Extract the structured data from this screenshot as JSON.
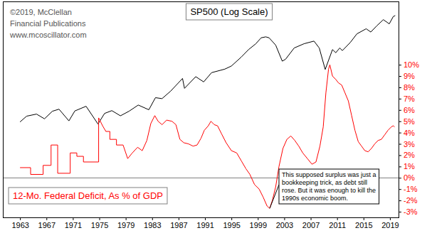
{
  "chart_data": {
    "type": "line",
    "log": "y",
    "grid": false,
    "xlim": [
      1960.4,
      2020.3
    ],
    "xticks": [
      1963,
      1967,
      1971,
      1975,
      1979,
      1983,
      1987,
      1991,
      1995,
      1999,
      2003,
      2007,
      2011,
      2015,
      2019
    ],
    "ylim": [
      2,
      4830
    ],
    "yticks": [],
    "y2lim": [
      -3.5,
      15.6
    ],
    "y2ticks": [
      {
        "value": -3,
        "label": "-3%"
      },
      {
        "value": -2,
        "label": "-2%"
      },
      {
        "value": -1,
        "label": "-1%"
      },
      {
        "value": 0,
        "label": "0%"
      },
      {
        "value": 1,
        "label": "1%"
      },
      {
        "value": 2,
        "label": "2%"
      },
      {
        "value": 3,
        "label": "3%"
      },
      {
        "value": 4,
        "label": "4%"
      },
      {
        "value": 5,
        "label": "5%"
      },
      {
        "value": 6,
        "label": "6%"
      },
      {
        "value": 7,
        "label": "7%"
      },
      {
        "value": 8,
        "label": "8%"
      },
      {
        "value": 9,
        "label": "9%"
      },
      {
        "value": 10,
        "label": "10%"
      }
    ],
    "series": [
      {
        "name": "SP500 (Log Scale)",
        "color": "#000000",
        "x": [
          1963.0,
          1964.0,
          1965.5,
          1966.7,
          1967.9,
          1968.9,
          1970.4,
          1971.3,
          1973.0,
          1974.8,
          1975.8,
          1976.9,
          1978.2,
          1979.5,
          1980.9,
          1982.5,
          1983.5,
          1984.5,
          1985.8,
          1987.6,
          1987.9,
          1989.6,
          1990.8,
          1992.0,
          1994.0,
          1995.0,
          1996.5,
          1997.6,
          1998.7,
          1999.5,
          2000.2,
          2000.7,
          2001.7,
          2002.7,
          2003.2,
          2004.5,
          2006.0,
          2007.5,
          2008.3,
          2009.2,
          2010.3,
          2010.8,
          2011.4,
          2011.8,
          2013.0,
          2014.0,
          2015.4,
          2016.1,
          2017.0,
          2018.0,
          2018.9,
          2019.5,
          2019.8
        ],
        "values": [
          62.5,
          77,
          83,
          70,
          92,
          99,
          65,
          93,
          110,
          58,
          85,
          94,
          78,
          92,
          115,
          97,
          150,
          145,
          190,
          300,
          210,
          320,
          265,
          370,
          420,
          470,
          650,
          850,
          1050,
          1300,
          1346,
          1300,
          1000,
          560,
          600,
          900,
          1050,
          1154,
          900,
          415,
          850,
          760,
          900,
          820,
          1100,
          1500,
          1800,
          1600,
          2000,
          2500,
          2150,
          2800,
          2900
        ]
      },
      {
        "name": "12-Mo. Federal Deficit, As % of GDP",
        "color": "#ff0000",
        "axis": "y2",
        "x": [
          1963.0,
          1964.6,
          1964.6,
          1966.5,
          1966.5,
          1967.7,
          1967.7,
          1968.7,
          1968.7,
          1970.6,
          1970.6,
          1971.6,
          1971.6,
          1972.6,
          1972.6,
          1974.9,
          1974.9,
          1975.5,
          1976.0,
          1976.6,
          1976.6,
          1977.6,
          1977.6,
          1978.6,
          1979.3,
          1980.0,
          1980.8,
          1981.5,
          1982.2,
          1982.8,
          1983.4,
          1983.9,
          1984.5,
          1985.2,
          1986.0,
          1986.6,
          1987.2,
          1987.8,
          1988.5,
          1989.2,
          1989.8,
          1990.4,
          1990.9,
          1991.5,
          1991.9,
          1992.4,
          1992.9,
          1993.5,
          1994.2,
          1995.0,
          1995.8,
          1996.5,
          1997.2,
          1997.8,
          1998.5,
          1999.2,
          1999.8,
          2000.4,
          2000.8,
          2001.2,
          2001.7,
          2002.2,
          2002.8,
          2003.4,
          2004.0,
          2004.6,
          2005.2,
          2005.8,
          2006.5,
          2007.2,
          2007.8,
          2008.4,
          2008.9,
          2009.3,
          2009.7,
          2009.9,
          2010.3,
          2010.8,
          2011.2,
          2011.7,
          2012.2,
          2012.7,
          2013.2,
          2013.7,
          2014.2,
          2014.7,
          2015.2,
          2015.7,
          2016.2,
          2016.7,
          2017.2,
          2017.7,
          2018.2,
          2018.7,
          2019.2,
          2019.5,
          2019.7
        ],
        "values": [
          0.9,
          0.9,
          0.3,
          0.3,
          1.1,
          1.1,
          2.9,
          2.9,
          0.4,
          0.4,
          2.2,
          2.2,
          1.9,
          1.9,
          1.4,
          1.4,
          5.3,
          4.6,
          4.1,
          4.1,
          3.4,
          3.4,
          2.9,
          2.9,
          1.7,
          2.2,
          2.7,
          2.4,
          3.3,
          4.8,
          5.5,
          5.0,
          4.7,
          5.1,
          5.0,
          4.7,
          3.4,
          3.1,
          3.0,
          2.8,
          2.9,
          3.5,
          4.2,
          4.6,
          5.0,
          4.7,
          4.6,
          3.9,
          3.1,
          2.4,
          2.2,
          1.5,
          0.8,
          0.3,
          -0.6,
          -1.0,
          -1.7,
          -2.5,
          -2.7,
          -2.0,
          -0.8,
          1.0,
          2.6,
          3.4,
          3.7,
          3.3,
          2.8,
          2.2,
          1.7,
          1.2,
          1.4,
          2.8,
          4.5,
          7.5,
          9.6,
          10.0,
          9.0,
          8.7,
          8.4,
          8.2,
          7.5,
          6.8,
          5.5,
          4.2,
          3.2,
          2.8,
          2.4,
          2.3,
          2.6,
          3.0,
          3.3,
          3.4,
          3.8,
          4.2,
          4.5,
          4.6,
          4.5
        ]
      }
    ],
    "annotations": [
      {
        "text": [
          "This supposed surplus was just a",
          "bookkeeping trick, as debt still",
          "rose. But it was enough to kill the",
          "1990s economic boom."
        ]
      }
    ],
    "credit": [
      "©2019, McClellan",
      "Financial Publications",
      "www.mcoscillator.com"
    ]
  }
}
